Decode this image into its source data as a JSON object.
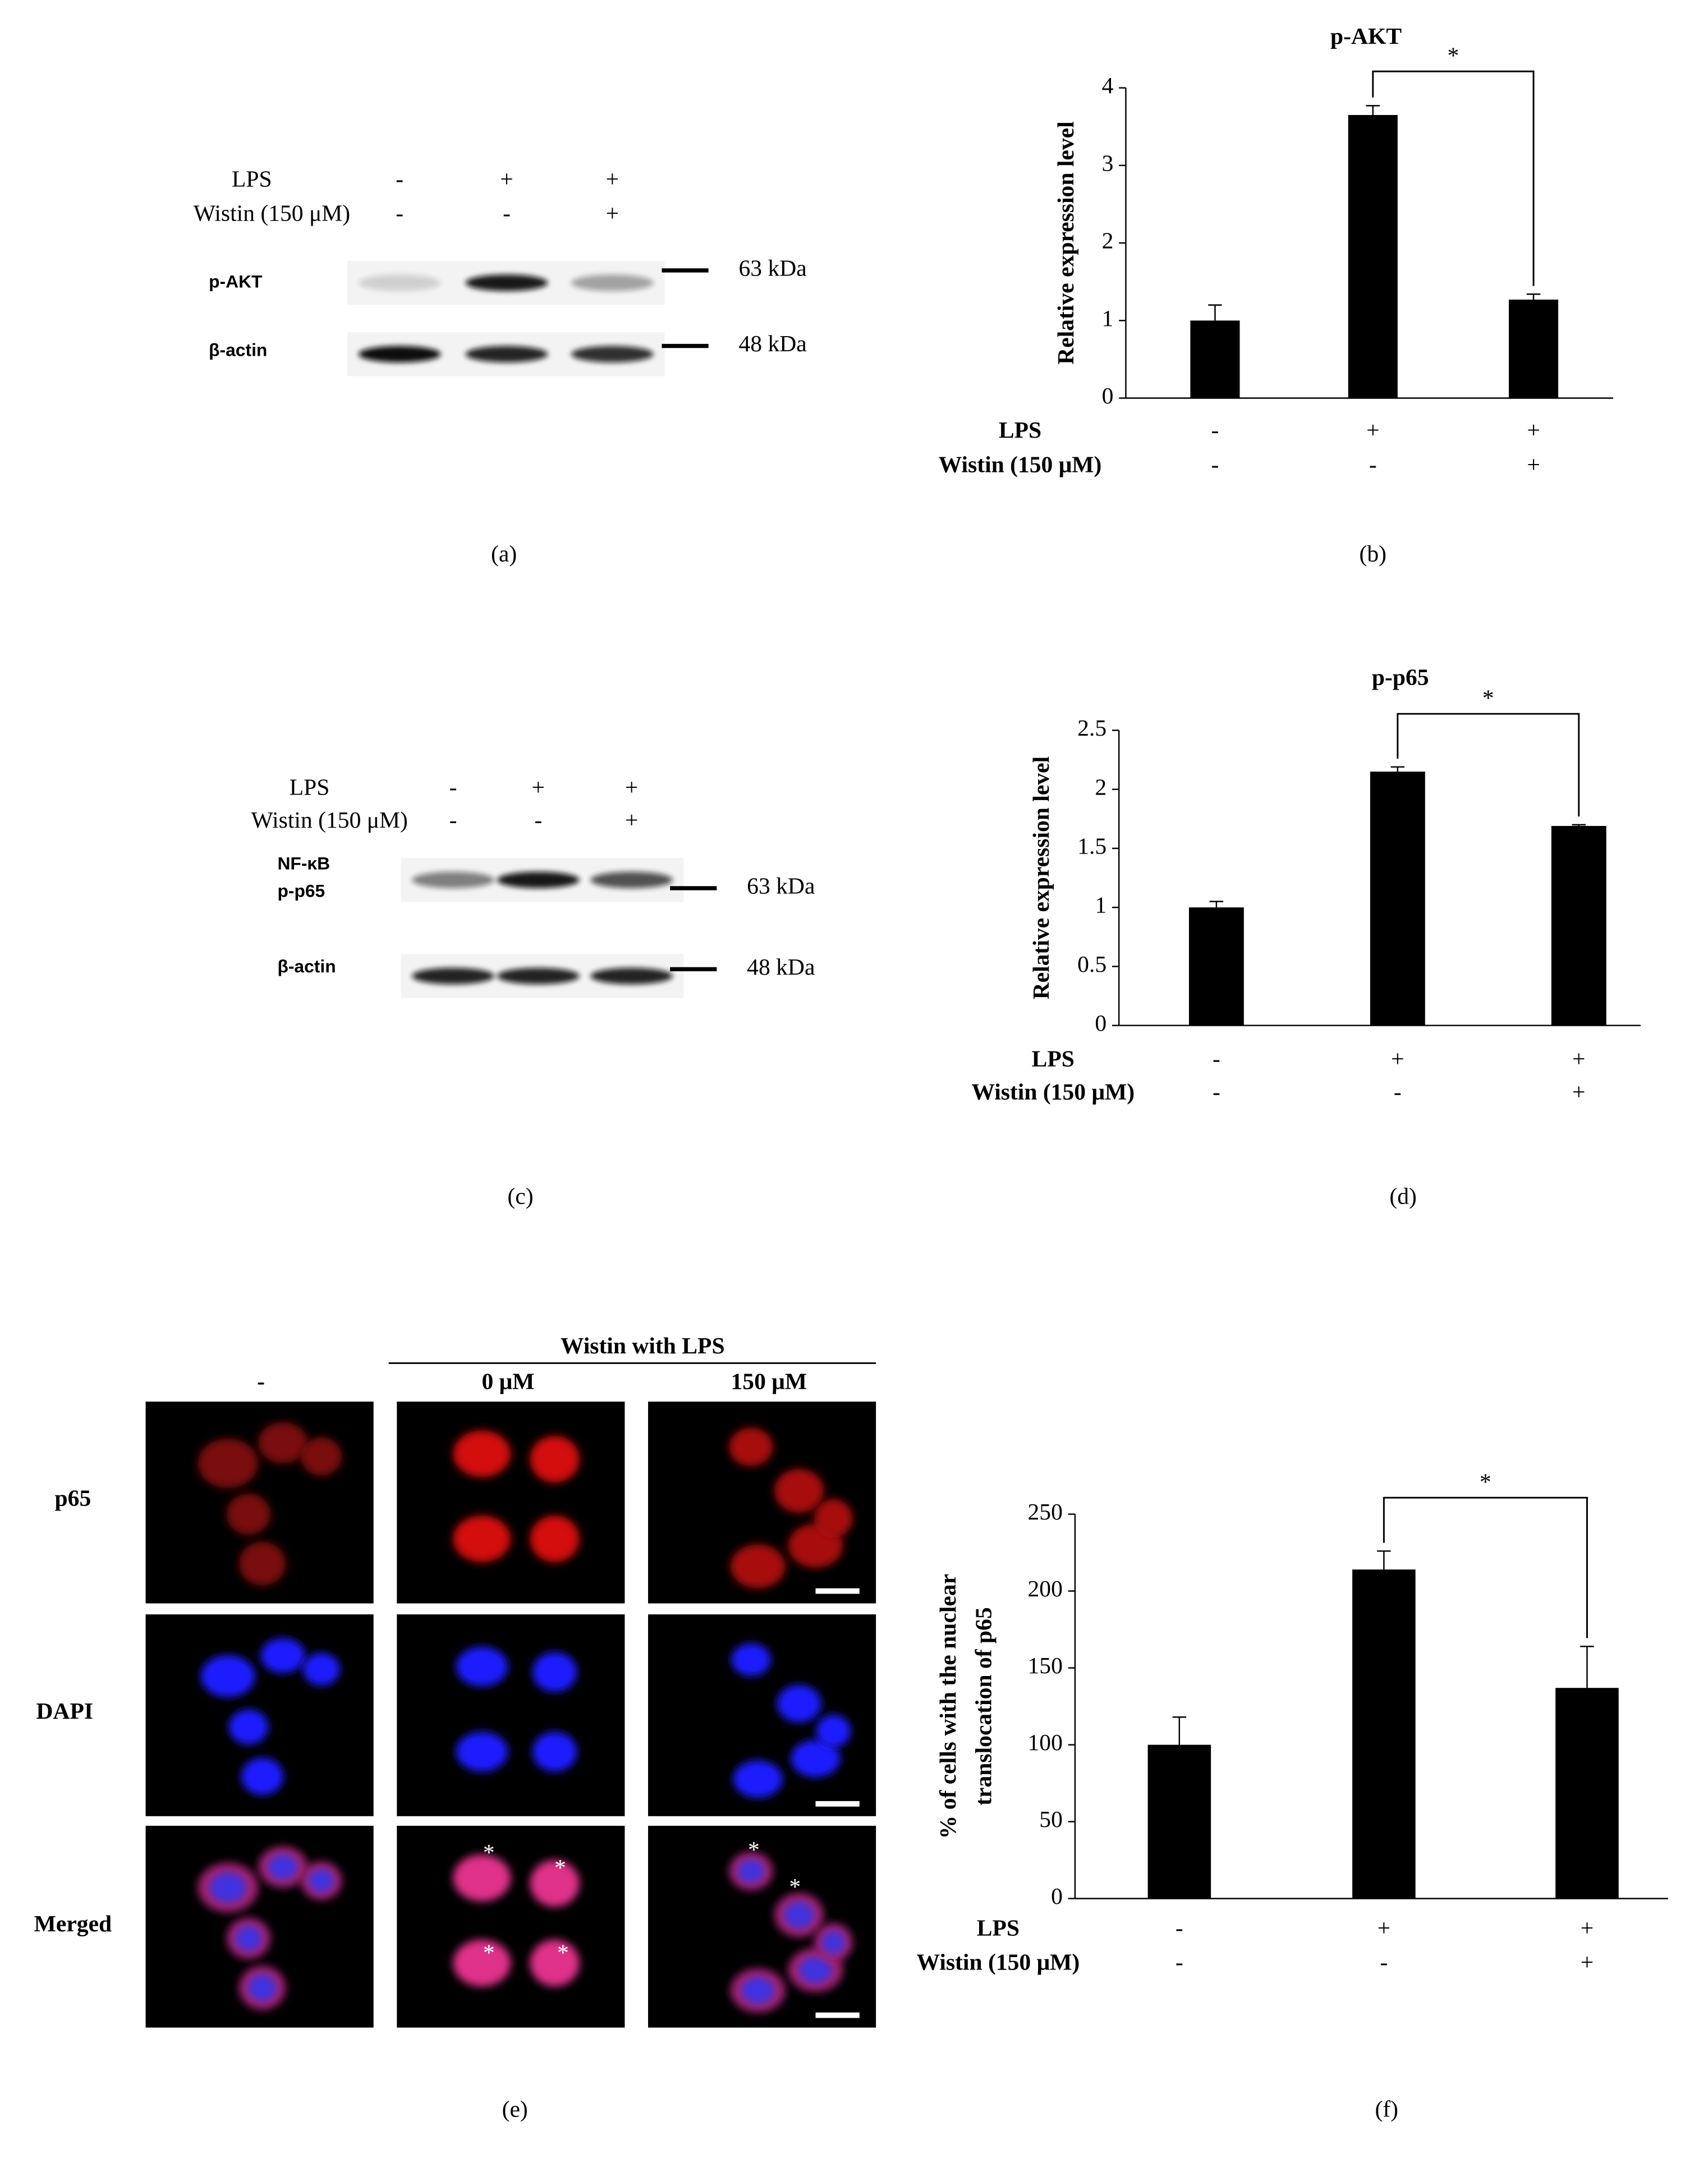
{
  "panel_labels": [
    "(a)",
    "(b)",
    "(c)",
    "(d)",
    "(e)",
    "(f)"
  ],
  "blot_a": {
    "treatments": [
      {
        "name": "LPS",
        "signs": [
          "-",
          "+",
          "+"
        ]
      },
      {
        "name": "Wistin (150 μM)",
        "signs": [
          "-",
          "-",
          "+"
        ]
      }
    ],
    "bands": [
      {
        "name": [
          "p-AKT"
        ],
        "size": "63 kDa"
      },
      {
        "name": [
          "β-actin"
        ],
        "size": "48 kDa"
      }
    ]
  },
  "blot_c": {
    "treatments": [
      {
        "name": "LPS",
        "signs": [
          "-",
          "+",
          "+"
        ]
      },
      {
        "name": "Wistin (150 μM)",
        "signs": [
          "-",
          "-",
          "+"
        ]
      }
    ],
    "bands": [
      {
        "name": [
          "NF-κB",
          "p-p65"
        ],
        "size": "63 kDa"
      },
      {
        "name": [
          "β-actin"
        ],
        "size": "48 kDa"
      }
    ]
  },
  "micrograph_e": {
    "group": "Wistin with LPS",
    "columns": [
      "-",
      "0 μM",
      "150 μM"
    ],
    "rows": [
      "p65",
      "DAPI",
      "Merged"
    ],
    "marker": "*"
  },
  "chart_data": [
    {
      "type": "bar",
      "title": "p-AKT",
      "ylabel": [
        "Relative expression level"
      ],
      "color": "#000000",
      "treatments": [
        {
          "name": "LPS",
          "signs": [
            "-",
            "+",
            "+"
          ]
        },
        {
          "name": "Wistin (150 μM)",
          "signs": [
            "-",
            "-",
            "+"
          ]
        }
      ],
      "values": [
        1,
        3.65,
        1.27
      ],
      "errors": [
        0.2,
        0.12,
        0.07
      ],
      "ylim": [
        0,
        4
      ],
      "yticks": [
        0,
        1,
        2,
        3,
        4
      ],
      "annotation": "*"
    },
    {
      "type": "bar",
      "title": "p-p65",
      "ylabel": [
        "Relative expression level"
      ],
      "color": "#000000",
      "treatments": [
        {
          "name": "LPS",
          "signs": [
            "-",
            "+",
            "+"
          ]
        },
        {
          "name": "Wistin (150 μM)",
          "signs": [
            "-",
            "-",
            "+"
          ]
        }
      ],
      "values": [
        1,
        2.15,
        1.69
      ],
      "errors": [
        0.05,
        0.04,
        0.01
      ],
      "ylim": [
        0,
        2.5
      ],
      "yticks": [
        0,
        0.5,
        1,
        1.5,
        2,
        2.5
      ],
      "annotation": "*"
    },
    {
      "type": "bar",
      "ylabel": [
        "% of cells with the nuclear",
        "translocation of p65"
      ],
      "color": "#000000",
      "treatments": [
        {
          "name": "LPS",
          "signs": [
            "-",
            "+",
            "+"
          ]
        },
        {
          "name": "Wistin (150 μM)",
          "signs": [
            "-",
            "-",
            "+"
          ]
        }
      ],
      "values": [
        100,
        214,
        137
      ],
      "errors": [
        18,
        12,
        27
      ],
      "ylim": [
        0,
        250
      ],
      "yticks": [
        0,
        50,
        100,
        150,
        200,
        250
      ],
      "annotation": "*"
    }
  ]
}
